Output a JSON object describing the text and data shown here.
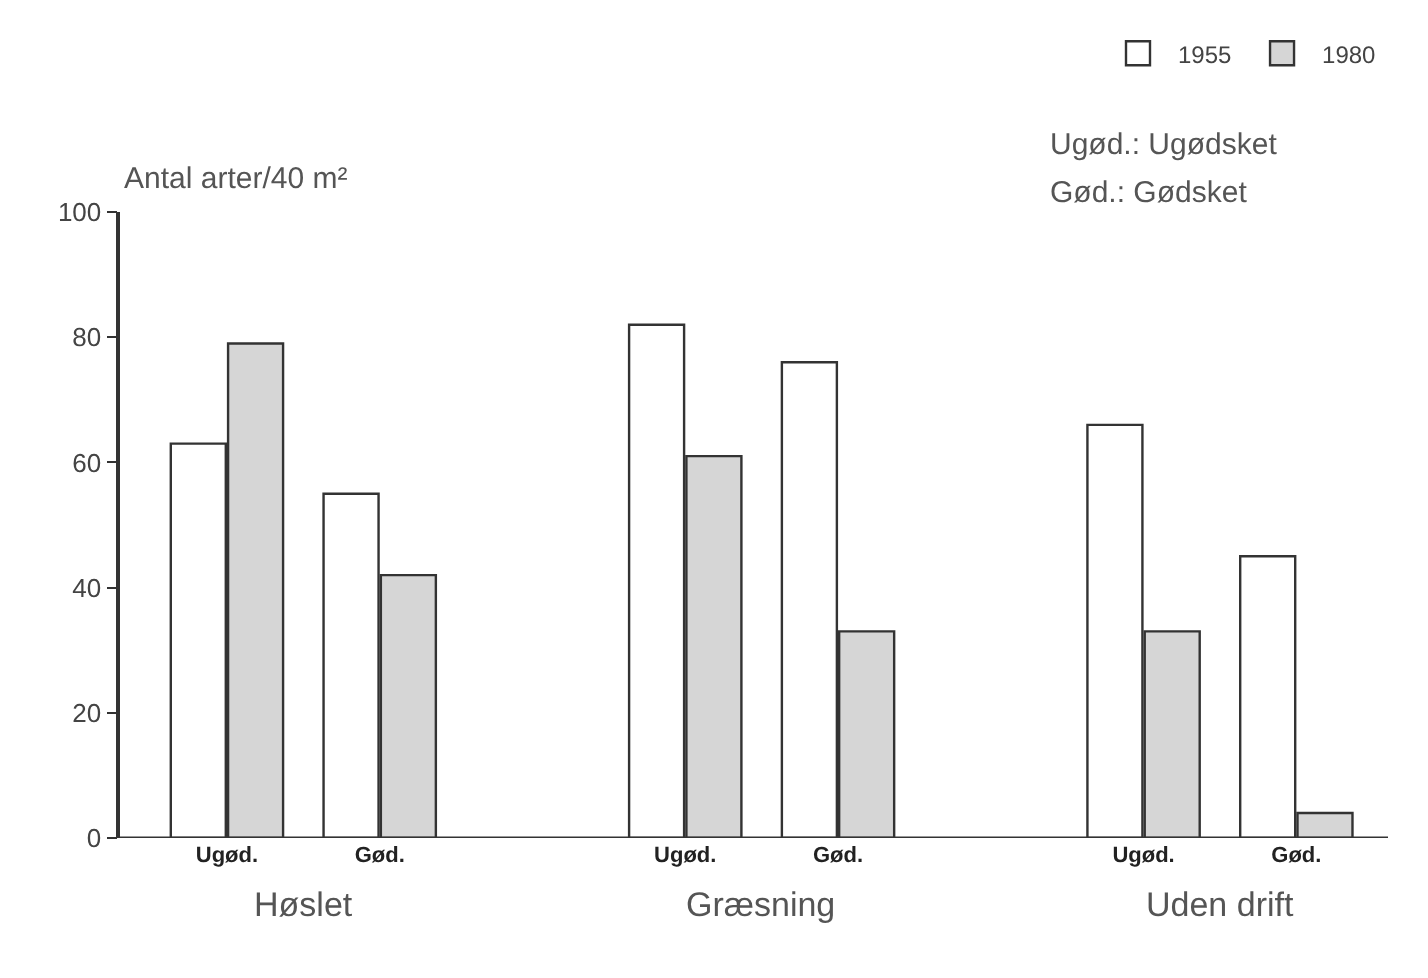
{
  "chart_data": {
    "type": "bar",
    "ylabel": "Antal arter/40 m²",
    "categories": [
      "Ugød.",
      "Gød.",
      null,
      "Ugød.",
      "Gød.",
      null,
      "Ugød.",
      "Gød."
    ],
    "series": [
      {
        "name": "1955",
        "color": "#ffffff",
        "values": [
          63,
          55,
          null,
          82,
          76,
          null,
          66,
          45
        ]
      },
      {
        "name": "1980",
        "color": "#d6d6d6",
        "values": [
          79,
          42,
          null,
          61,
          33,
          null,
          33,
          4
        ]
      }
    ],
    "ylim": [
      0,
      100
    ],
    "yticks": [
      0,
      20,
      40,
      60,
      80,
      100
    ],
    "legend": "top right",
    "annotations": [
      "Høslet",
      "Græsning",
      "Uden drift",
      "Ugød.: Ugødsket",
      "Gød.: Gødsket"
    ]
  }
}
